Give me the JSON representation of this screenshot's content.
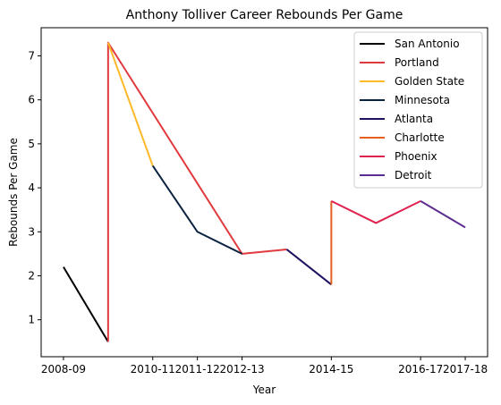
{
  "chart_data": {
    "type": "line",
    "title": "Anthony Tolliver Career Rebounds Per Game",
    "xlabel": "Year",
    "ylabel": "Rebounds Per Game",
    "x_tick_labels": [
      "2008-09",
      "2010-11",
      "2011-12",
      "2012-13",
      "2014-15",
      "2016-17",
      "2017-18"
    ],
    "y_ticks": [
      1,
      2,
      3,
      4,
      5,
      6,
      7
    ],
    "ylim": [
      0.16,
      7.64
    ],
    "grid": false,
    "legend_position": "top-right",
    "series": [
      {
        "name": "San Antonio",
        "color": "#000000",
        "points": [
          {
            "x": "2008-09",
            "y": 2.2
          },
          {
            "x": "2009-10",
            "y": 0.5
          }
        ]
      },
      {
        "name": "Portland",
        "color": "#e03a3e",
        "points": [
          {
            "x": "2009-10",
            "y": 0.5
          },
          {
            "x": "2009-10",
            "y": 7.3
          },
          {
            "x": "2012-13",
            "y": 2.5
          },
          {
            "x": "2013-14",
            "y": 2.6
          }
        ]
      },
      {
        "name": "Golden State",
        "color": "#fdb927",
        "points": [
          {
            "x": "2009-10",
            "y": 7.3
          },
          {
            "x": "2010-11",
            "y": 4.5
          }
        ]
      },
      {
        "name": "Minnesota",
        "color": "#0c2340",
        "points": [
          {
            "x": "2010-11",
            "y": 4.5
          },
          {
            "x": "2011-12",
            "y": 3.0
          },
          {
            "x": "2012-13",
            "y": 2.5
          }
        ]
      },
      {
        "name": "Atlanta",
        "color": "#1d1160",
        "points": [
          {
            "x": "2013-14",
            "y": 2.6
          },
          {
            "x": "2014-15",
            "y": 1.8
          }
        ]
      },
      {
        "name": "Charlotte",
        "color": "#e56020",
        "points": [
          {
            "x": "2014-15",
            "y": 1.8
          },
          {
            "x": "2014-15",
            "y": 3.7
          }
        ]
      },
      {
        "name": "Phoenix",
        "color": "#e0234e",
        "points": [
          {
            "x": "2014-15",
            "y": 3.7
          },
          {
            "x": "2015-16",
            "y": 3.2
          },
          {
            "x": "2016-17",
            "y": 3.7
          }
        ]
      },
      {
        "name": "Detroit",
        "color": "#5c2d91",
        "points": [
          {
            "x": "2016-17",
            "y": 3.7
          },
          {
            "x": "2017-18",
            "y": 3.1
          }
        ]
      }
    ]
  }
}
